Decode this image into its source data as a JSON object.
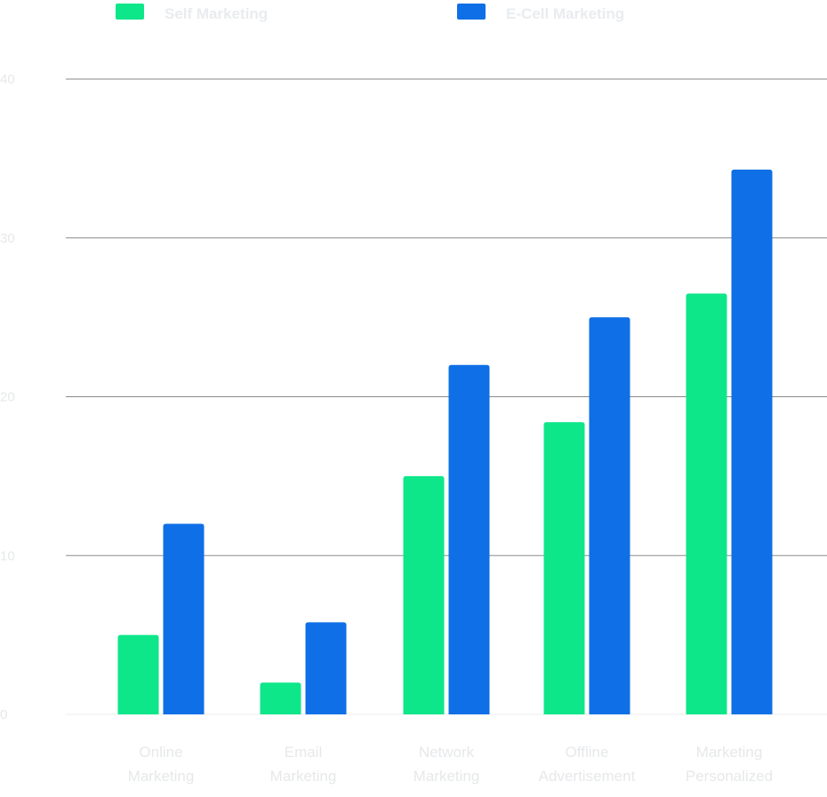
{
  "chart_data": {
    "type": "bar",
    "categories": [
      [
        "Online",
        "Marketing"
      ],
      [
        "Email",
        "Marketing"
      ],
      [
        "Network",
        "Marketing"
      ],
      [
        "Offline",
        "Advertisement"
      ],
      [
        "Marketing",
        "Personalized"
      ]
    ],
    "series": [
      {
        "name": "Self Marketing",
        "color": "#0ee68a",
        "values": [
          5,
          2,
          15,
          18.4,
          26.5
        ]
      },
      {
        "name": "E-Cell Marketing",
        "color": "#0f6fe6",
        "values": [
          12,
          5.8,
          22,
          25,
          34.3
        ]
      }
    ],
    "yticks": [
      0,
      10,
      20,
      30,
      40
    ],
    "ylim": [
      0,
      40
    ],
    "grid": true,
    "legend_position": "top"
  }
}
